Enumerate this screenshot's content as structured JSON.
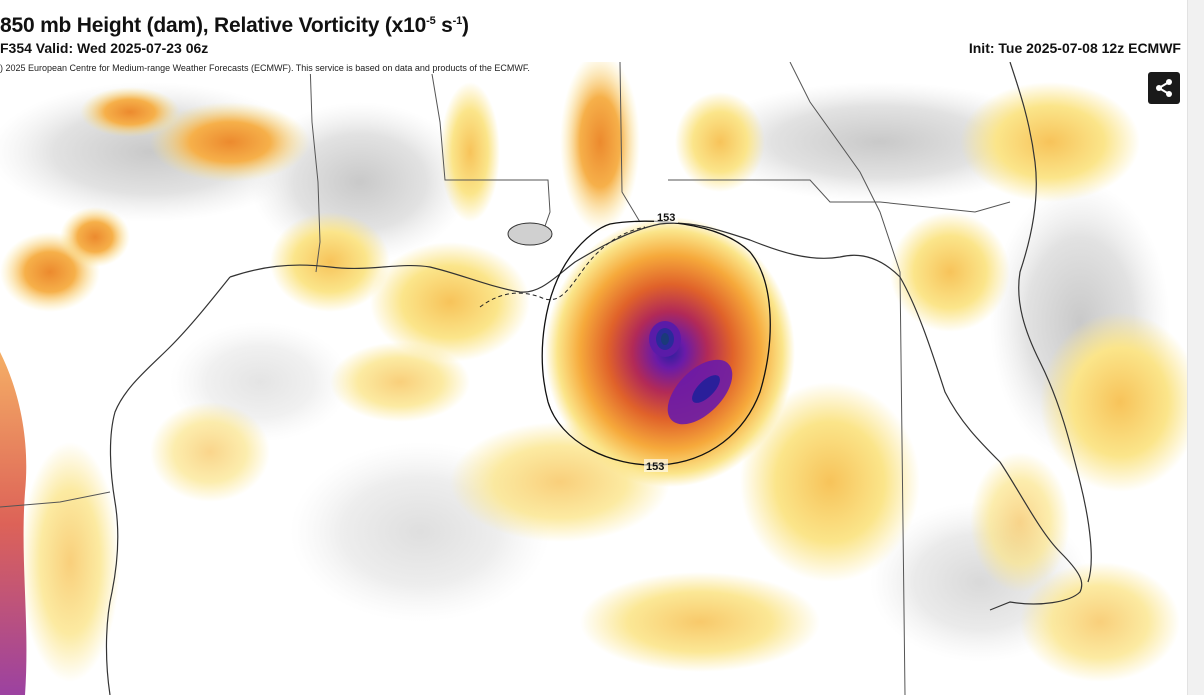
{
  "header": {
    "title_main": "850 mb Height (dam), Relative Vorticity (x10",
    "title_exp1": "-5",
    "title_mid": " s",
    "title_exp2": "-1",
    "title_end": ")",
    "valid_line": "F354 Valid: Wed 2025-07-23 06z",
    "init_line": "Init: Tue 2025-07-08 12z ECMWF"
  },
  "map": {
    "copyright": ") 2025 European Centre for Medium-range Weather Forecasts (ECMWF). This service is based on data and products of the ECMWF.",
    "contour_labels": [
      "153",
      "153"
    ],
    "share_icon": "share-icon",
    "colors": {
      "background": "#ffffff",
      "low_vorticity": "#fbe58a",
      "mid_vorticity": "#f6a93b",
      "high_vorticity": "#e0622a",
      "very_high_vorticity": "#b22a57",
      "extreme_vorticity": "#6a1ba8",
      "negative_vorticity": "#d8d8d8",
      "coastline": "#333333",
      "contour": "#111111"
    }
  }
}
